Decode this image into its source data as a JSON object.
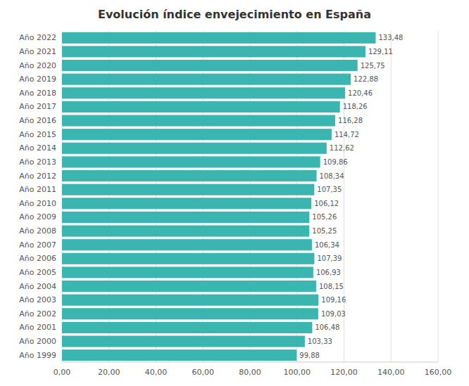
{
  "chart_data": {
    "type": "bar",
    "orientation": "horizontal",
    "title": "Evolución índice envejecimiento en España",
    "categories": [
      "Año 2022",
      "Año 2021",
      "Año 2020",
      "Año 2019",
      "Año 2018",
      "Año 2017",
      "Año 2016",
      "Año 2015",
      "Año 2014",
      "Año 2013",
      "Año 2012",
      "Año 2011",
      "Año 2010",
      "Año 2009",
      "Año 2008",
      "Año 2007",
      "Año 2006",
      "Año 2005",
      "Año 2004",
      "Año 2003",
      "Año 2002",
      "Año 2001",
      "Año 2000",
      "Año 1999"
    ],
    "values": [
      133.48,
      129.11,
      125.75,
      122.88,
      120.46,
      118.26,
      116.28,
      114.72,
      112.62,
      109.86,
      108.34,
      107.35,
      106.12,
      105.26,
      105.25,
      106.34,
      107.39,
      106.93,
      108.15,
      109.16,
      109.03,
      106.48,
      103.33,
      99.88
    ],
    "value_labels": [
      "133,48",
      "129,11",
      "125,75",
      "122,88",
      "120,46",
      "118,26",
      "116,28",
      "114,72",
      "112,62",
      "109,86",
      "108,34",
      "107,35",
      "106,12",
      "105,26",
      "105,25",
      "106,34",
      "107,39",
      "106,93",
      "108,15",
      "109,16",
      "109,03",
      "106,48",
      "103,33",
      "99,88"
    ],
    "data_labels": true,
    "color": "#3ab5b0",
    "xlim": [
      0,
      160
    ],
    "xticks": [
      {
        "value": 0,
        "label": "0,00"
      },
      {
        "value": 20,
        "label": "20,00"
      },
      {
        "value": 40,
        "label": "40,00"
      },
      {
        "value": 60,
        "label": "60,00"
      },
      {
        "value": 80,
        "label": "80,00"
      },
      {
        "value": 100,
        "label": "100,00"
      },
      {
        "value": 120,
        "label": "120,00"
      },
      {
        "value": 140,
        "label": "140,00"
      },
      {
        "value": 160,
        "label": "160,00"
      }
    ],
    "grid": true
  }
}
